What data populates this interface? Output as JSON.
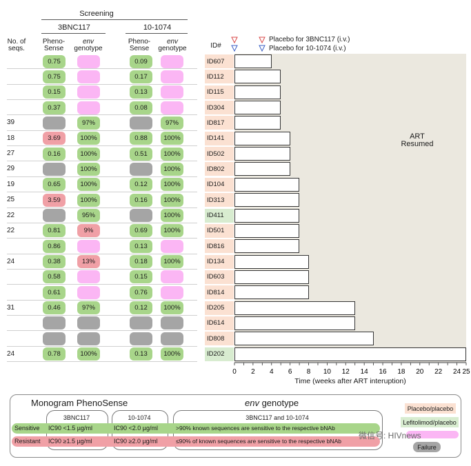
{
  "header": {
    "screening": "Screening",
    "ab1": "3BNC117",
    "ab2": "10-1074",
    "seq_line1": "No. of",
    "seq_line2": "seqs.",
    "pheno_line1": "Pheno-",
    "pheno_line2": "Sense",
    "env_line1": "env",
    "env_line2": "genotype",
    "id_label": "ID#"
  },
  "triangle_legend": {
    "red": "Placebo for 3BNC117 (i.v.)",
    "blue": "Placebo for 10-1074 (i.v.)"
  },
  "colors": {
    "sensitive": "#a8d58a",
    "resistant": "#f0a0a6",
    "env_purple": "#fbb6f4",
    "failure": "#a5a5a5",
    "placebo_id": "#fbe1d2",
    "lefitolimod_id": "#d8ecd0",
    "art_region": "#ebe8df"
  },
  "chart_data": {
    "type": "bar",
    "orientation": "horizontal",
    "xlabel": "Time (weeks after ART interuption)",
    "xlim": [
      0,
      25
    ],
    "xticks": [
      0,
      2,
      4,
      6,
      8,
      10,
      12,
      14,
      16,
      18,
      20,
      22,
      24,
      25
    ],
    "region_label_1": "ART",
    "region_label_2": "Resumed",
    "rows": [
      {
        "id": "ID607",
        "arm": "placebo",
        "weeks": 4,
        "seqs": "",
        "p1": {
          "v": "0.75",
          "c": "g"
        },
        "e1": {
          "v": "",
          "c": "p"
        },
        "p2": {
          "v": "0.09",
          "c": "g"
        },
        "e2": {
          "v": "",
          "c": "p"
        }
      },
      {
        "id": "ID112",
        "arm": "placebo",
        "weeks": 5,
        "seqs": "",
        "p1": {
          "v": "0.75",
          "c": "g"
        },
        "e1": {
          "v": "",
          "c": "p"
        },
        "p2": {
          "v": "0.17",
          "c": "g"
        },
        "e2": {
          "v": "",
          "c": "p"
        }
      },
      {
        "id": "ID115",
        "arm": "placebo",
        "weeks": 5,
        "seqs": "",
        "p1": {
          "v": "0.15",
          "c": "g"
        },
        "e1": {
          "v": "",
          "c": "p"
        },
        "p2": {
          "v": "0.13",
          "c": "g"
        },
        "e2": {
          "v": "",
          "c": "p"
        }
      },
      {
        "id": "ID304",
        "arm": "placebo",
        "weeks": 5,
        "seqs": "",
        "p1": {
          "v": "0.37",
          "c": "g"
        },
        "e1": {
          "v": "",
          "c": "p"
        },
        "p2": {
          "v": "0.08",
          "c": "g"
        },
        "e2": {
          "v": "",
          "c": "p"
        }
      },
      {
        "id": "ID817",
        "arm": "placebo",
        "weeks": 5,
        "seqs": "39",
        "p1": {
          "v": "",
          "c": "gr"
        },
        "e1": {
          "v": "97%",
          "c": "g"
        },
        "p2": {
          "v": "",
          "c": "gr"
        },
        "e2": {
          "v": "97%",
          "c": "g"
        }
      },
      {
        "id": "ID141",
        "arm": "placebo",
        "weeks": 6,
        "seqs": "18",
        "p1": {
          "v": "3.69",
          "c": "r"
        },
        "e1": {
          "v": "100%",
          "c": "g"
        },
        "p2": {
          "v": "0.88",
          "c": "g"
        },
        "e2": {
          "v": "100%",
          "c": "g"
        }
      },
      {
        "id": "ID502",
        "arm": "placebo",
        "weeks": 6,
        "seqs": "27",
        "p1": {
          "v": "0.16",
          "c": "g"
        },
        "e1": {
          "v": "100%",
          "c": "g"
        },
        "p2": {
          "v": "0.51",
          "c": "g"
        },
        "e2": {
          "v": "100%",
          "c": "g"
        }
      },
      {
        "id": "ID802",
        "arm": "placebo",
        "weeks": 6,
        "seqs": "29",
        "p1": {
          "v": "",
          "c": "gr"
        },
        "e1": {
          "v": "100%",
          "c": "g"
        },
        "p2": {
          "v": "",
          "c": "gr"
        },
        "e2": {
          "v": "100%",
          "c": "g"
        }
      },
      {
        "id": "ID104",
        "arm": "placebo",
        "weeks": 7,
        "seqs": "19",
        "p1": {
          "v": "0.65",
          "c": "g"
        },
        "e1": {
          "v": "100%",
          "c": "g"
        },
        "p2": {
          "v": "0.12",
          "c": "g"
        },
        "e2": {
          "v": "100%",
          "c": "g"
        }
      },
      {
        "id": "ID313",
        "arm": "placebo",
        "weeks": 7,
        "seqs": "25",
        "p1": {
          "v": "3.59",
          "c": "r"
        },
        "e1": {
          "v": "100%",
          "c": "g"
        },
        "p2": {
          "v": "0.16",
          "c": "g"
        },
        "e2": {
          "v": "100%",
          "c": "g"
        }
      },
      {
        "id": "ID411",
        "arm": "lefitolimod",
        "weeks": 7,
        "seqs": "22",
        "p1": {
          "v": "",
          "c": "gr"
        },
        "e1": {
          "v": "95%",
          "c": "g"
        },
        "p2": {
          "v": "",
          "c": "gr"
        },
        "e2": {
          "v": "100%",
          "c": "g"
        }
      },
      {
        "id": "ID501",
        "arm": "placebo",
        "weeks": 7,
        "seqs": "22",
        "p1": {
          "v": "0.81",
          "c": "g"
        },
        "e1": {
          "v": "9%",
          "c": "r"
        },
        "p2": {
          "v": "0.69",
          "c": "g"
        },
        "e2": {
          "v": "100%",
          "c": "g"
        }
      },
      {
        "id": "ID816",
        "arm": "placebo",
        "weeks": 7,
        "seqs": "",
        "p1": {
          "v": "0.86",
          "c": "g"
        },
        "e1": {
          "v": "",
          "c": "p"
        },
        "p2": {
          "v": "0.13",
          "c": "g"
        },
        "e2": {
          "v": "",
          "c": "p"
        }
      },
      {
        "id": "ID134",
        "arm": "placebo",
        "weeks": 8,
        "seqs": "24",
        "p1": {
          "v": "0.38",
          "c": "g"
        },
        "e1": {
          "v": "13%",
          "c": "r"
        },
        "p2": {
          "v": "0.18",
          "c": "g"
        },
        "e2": {
          "v": "100%",
          "c": "g"
        }
      },
      {
        "id": "ID603",
        "arm": "placebo",
        "weeks": 8,
        "seqs": "",
        "p1": {
          "v": "0.58",
          "c": "g"
        },
        "e1": {
          "v": "",
          "c": "p"
        },
        "p2": {
          "v": "0.15",
          "c": "g"
        },
        "e2": {
          "v": "",
          "c": "p"
        }
      },
      {
        "id": "ID814",
        "arm": "placebo",
        "weeks": 8,
        "seqs": "",
        "p1": {
          "v": "0.61",
          "c": "g"
        },
        "e1": {
          "v": "",
          "c": "p"
        },
        "p2": {
          "v": "0.76",
          "c": "g"
        },
        "e2": {
          "v": "",
          "c": "p"
        }
      },
      {
        "id": "ID205",
        "arm": "placebo",
        "weeks": 13,
        "seqs": "31",
        "p1": {
          "v": "0.46",
          "c": "g"
        },
        "e1": {
          "v": "97%",
          "c": "g"
        },
        "p2": {
          "v": "0.12",
          "c": "g"
        },
        "e2": {
          "v": "100%",
          "c": "g"
        }
      },
      {
        "id": "ID614",
        "arm": "placebo",
        "weeks": 13,
        "seqs": "",
        "p1": {
          "v": "",
          "c": "gr"
        },
        "e1": {
          "v": "",
          "c": "gr"
        },
        "p2": {
          "v": "",
          "c": "gr"
        },
        "e2": {
          "v": "",
          "c": "gr"
        }
      },
      {
        "id": "ID808",
        "arm": "placebo",
        "weeks": 15,
        "seqs": "",
        "p1": {
          "v": "",
          "c": "gr"
        },
        "e1": {
          "v": "",
          "c": "gr"
        },
        "p2": {
          "v": "",
          "c": "gr"
        },
        "e2": {
          "v": "",
          "c": "gr"
        }
      },
      {
        "id": "ID202",
        "arm": "lefitolimod",
        "weeks": 25,
        "seqs": "24",
        "p1": {
          "v": "0.78",
          "c": "g"
        },
        "e1": {
          "v": "100%",
          "c": "g"
        },
        "p2": {
          "v": "0.13",
          "c": "g"
        },
        "e2": {
          "v": "100%",
          "c": "g"
        }
      }
    ]
  },
  "legend": {
    "pheno_title": "Monogram PhenoSense",
    "env_title_1": "env",
    "env_title_2": " genotype",
    "ab1": "3BNC117",
    "ab2": "10-1074",
    "both": "3BNC117 and 10-1074",
    "sensitive": "Sensitive",
    "resistant": "Resistant",
    "s_ab1": "IC90 <1.5 µg/ml",
    "r_ab1": "IC90 ≥1.5 µg/ml",
    "s_ab2": "IC90 <2.0 µg/ml",
    "r_ab2": "IC90 ≥2.0 µg/ml",
    "s_env": ">90% known sequences are sensitive to the respective bNAb",
    "r_env": "≤90% of known sequences are sensitive to the respective bNAb",
    "placebo": "Placebo/placebo",
    "lefitolimod": "Lefitolimod/placebo",
    "failure": "Failure",
    "watermark": "微信号: HIVnews"
  }
}
